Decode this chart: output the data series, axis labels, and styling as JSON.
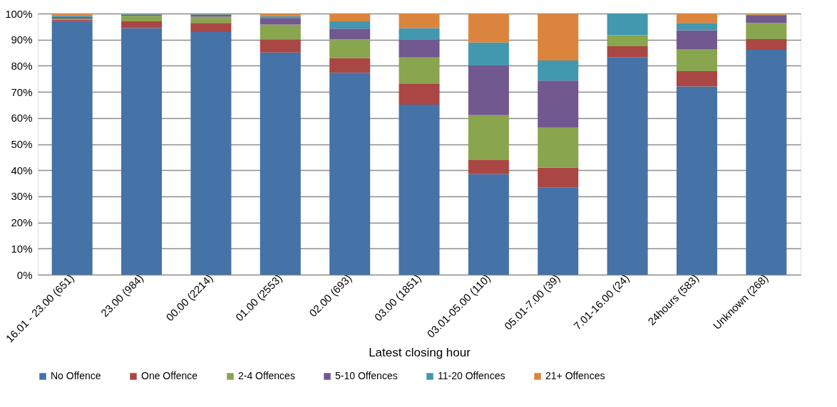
{
  "chart_data": {
    "type": "bar",
    "stacked": true,
    "xlabel": "Latest closing hour",
    "categories": [
      "16.01 - 23.00 (651)",
      "23.00 (984)",
      "00.00 (2214)",
      "01.00 (2553)",
      "02.00 (693)",
      "03.00 (1851)",
      "03.01-05.00 (110)",
      "05.01-7.00 (39)",
      "7.01-16.00 (24)",
      "24hours (583)",
      "Unknown (268)"
    ],
    "series": [
      {
        "name": "No Offence",
        "color": "#4572a7",
        "values": [
          97.1,
          94.4,
          92.9,
          85.1,
          77.3,
          65.1,
          38.5,
          33.3,
          83.3,
          72.1,
          86.1
        ]
      },
      {
        "name": "One Offence",
        "color": "#aa4643",
        "values": [
          0.6,
          2.6,
          3.5,
          5.0,
          5.7,
          7.9,
          5.4,
          7.7,
          4.2,
          5.8,
          4.1
        ]
      },
      {
        "name": "2-4 Offences",
        "color": "#89a54e",
        "values": [
          0.4,
          2.1,
          2.4,
          5.7,
          7.1,
          10.2,
          17.2,
          15.4,
          4.2,
          8.5,
          6.2
        ]
      },
      {
        "name": "5-10 Offences",
        "color": "#71588f",
        "values": [
          0.7,
          0.4,
          0.7,
          2.5,
          4.1,
          6.9,
          19.0,
          17.9,
          0,
          7.2,
          2.8
        ]
      },
      {
        "name": "11-20 Offences",
        "color": "#4198af",
        "values": [
          0.5,
          0.3,
          0.2,
          0.7,
          2.8,
          4.3,
          8.8,
          7.7,
          8.3,
          2.8,
          0.3
        ]
      },
      {
        "name": "21+ Offences",
        "color": "#db843d",
        "values": [
          0.7,
          0.2,
          0.3,
          1.0,
          3.0,
          5.6,
          11.1,
          17.9,
          0,
          3.6,
          0.5
        ]
      }
    ],
    "ylim": [
      0,
      100
    ],
    "yticks": [
      {
        "value": 0,
        "label": "0%"
      },
      {
        "value": 10,
        "label": "10%"
      },
      {
        "value": 20,
        "label": "20%"
      },
      {
        "value": 30,
        "label": "30%"
      },
      {
        "value": 40,
        "label": "40%"
      },
      {
        "value": 50,
        "label": "50%"
      },
      {
        "value": 60,
        "label": "60%"
      },
      {
        "value": 70,
        "label": "70%"
      },
      {
        "value": 80,
        "label": "80%"
      },
      {
        "value": 90,
        "label": "90%"
      },
      {
        "value": 100,
        "label": "100%"
      }
    ],
    "grid": "y",
    "legend": "bottom"
  }
}
